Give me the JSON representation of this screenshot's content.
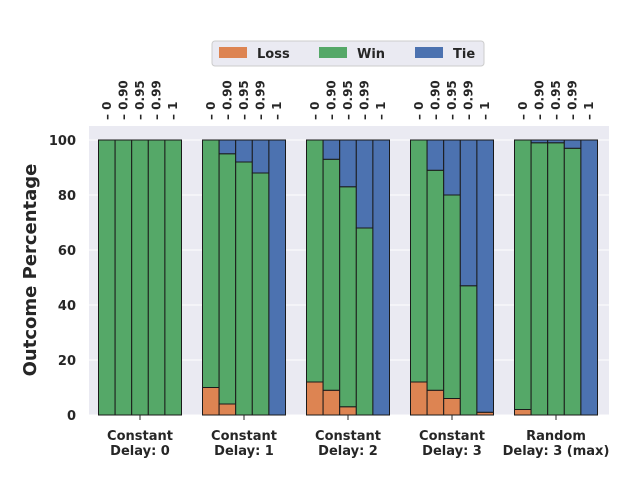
{
  "chart_data": {
    "type": "bar",
    "stacked": true,
    "ylabel": "Outcome Percentage",
    "ylim": [
      0,
      100
    ],
    "yticks": [
      0,
      20,
      40,
      60,
      80,
      100
    ],
    "grid": true,
    "legend_position": "top-center",
    "series": [
      {
        "name": "Loss",
        "color": "#dd8452"
      },
      {
        "name": "Win",
        "color": "#55a868"
      },
      {
        "name": "Tie",
        "color": "#4c72b0"
      }
    ],
    "groups": [
      {
        "label": [
          "Constant",
          "Delay: 0"
        ],
        "bars": [
          {
            "sub": "0",
            "loss": 0,
            "win": 100,
            "tie": 0
          },
          {
            "sub": "0.90",
            "loss": 0,
            "win": 100,
            "tie": 0
          },
          {
            "sub": "0.95",
            "loss": 0,
            "win": 100,
            "tie": 0
          },
          {
            "sub": "0.99",
            "loss": 0,
            "win": 100,
            "tie": 0
          },
          {
            "sub": "1",
            "loss": 0,
            "win": 100,
            "tie": 0
          }
        ]
      },
      {
        "label": [
          "Constant",
          "Delay: 1"
        ],
        "bars": [
          {
            "sub": "0",
            "loss": 10,
            "win": 90,
            "tie": 0
          },
          {
            "sub": "0.90",
            "loss": 4,
            "win": 91,
            "tie": 5
          },
          {
            "sub": "0.95",
            "loss": 0,
            "win": 92,
            "tie": 8
          },
          {
            "sub": "0.99",
            "loss": 0,
            "win": 88,
            "tie": 12
          },
          {
            "sub": "1",
            "loss": 0,
            "win": 0,
            "tie": 100
          }
        ]
      },
      {
        "label": [
          "Constant",
          "Delay: 2"
        ],
        "bars": [
          {
            "sub": "0",
            "loss": 12,
            "win": 88,
            "tie": 0
          },
          {
            "sub": "0.90",
            "loss": 9,
            "win": 84,
            "tie": 7
          },
          {
            "sub": "0.95",
            "loss": 3,
            "win": 80,
            "tie": 17
          },
          {
            "sub": "0.99",
            "loss": 0,
            "win": 68,
            "tie": 32
          },
          {
            "sub": "1",
            "loss": 0,
            "win": 0,
            "tie": 100
          }
        ]
      },
      {
        "label": [
          "Constant",
          "Delay: 3"
        ],
        "bars": [
          {
            "sub": "0",
            "loss": 12,
            "win": 88,
            "tie": 0
          },
          {
            "sub": "0.90",
            "loss": 9,
            "win": 80,
            "tie": 11
          },
          {
            "sub": "0.95",
            "loss": 6,
            "win": 74,
            "tie": 20
          },
          {
            "sub": "0.99",
            "loss": 0,
            "win": 47,
            "tie": 53
          },
          {
            "sub": "1",
            "loss": 1,
            "win": 0,
            "tie": 99
          }
        ]
      },
      {
        "label": [
          "Random",
          "Delay: 3 (max)"
        ],
        "bars": [
          {
            "sub": "0",
            "loss": 2,
            "win": 98,
            "tie": 0
          },
          {
            "sub": "0.90",
            "loss": 0,
            "win": 99,
            "tie": 1
          },
          {
            "sub": "0.95",
            "loss": 0,
            "win": 99,
            "tie": 1
          },
          {
            "sub": "0.99",
            "loss": 0,
            "win": 97,
            "tie": 3
          },
          {
            "sub": "1",
            "loss": 0,
            "win": 0,
            "tie": 100
          }
        ]
      }
    ]
  }
}
